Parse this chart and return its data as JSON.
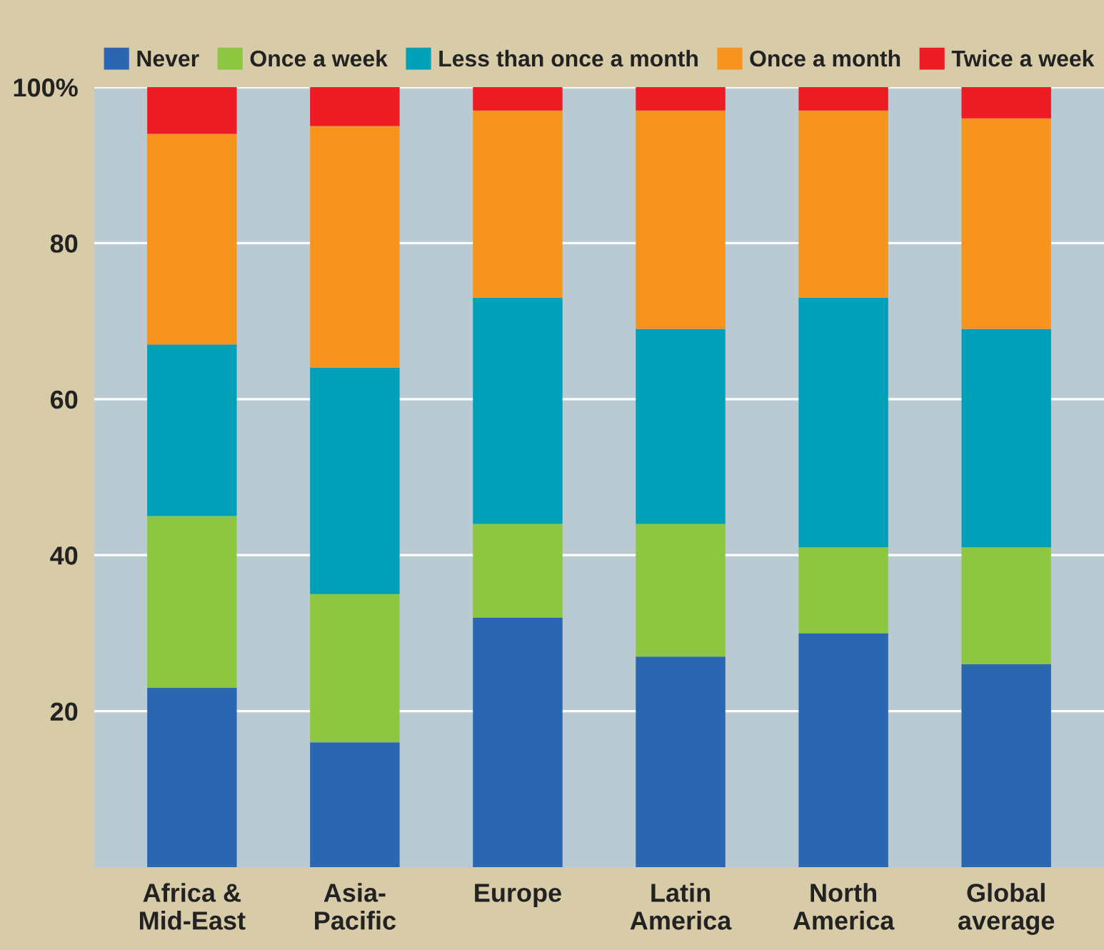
{
  "chart_data": {
    "type": "bar",
    "stacked": true,
    "categories": [
      "Africa &\nMid-East",
      "Asia-\nPacific",
      "Europe",
      "Latin\nAmerica",
      "North\nAmerica",
      "Global\naverage"
    ],
    "series": [
      {
        "name": "Never",
        "color": "#2a66b1",
        "values": [
          23,
          16,
          32,
          27,
          30,
          26
        ]
      },
      {
        "name": "Once a week",
        "color": "#8dc63f",
        "values": [
          22,
          19,
          12,
          17,
          11,
          15
        ]
      },
      {
        "name": "Less than once a month",
        "color": "#00a0b8",
        "values": [
          22,
          29,
          29,
          25,
          32,
          28
        ]
      },
      {
        "name": "Once a month",
        "color": "#f7941e",
        "values": [
          27,
          31,
          24,
          28,
          24,
          27
        ]
      },
      {
        "name": "Twice a week",
        "color": "#ed1c24",
        "values": [
          6,
          5,
          3,
          3,
          3,
          4
        ]
      }
    ],
    "ylim": [
      0,
      100
    ],
    "yticks": [
      20,
      40,
      60,
      80,
      {
        "value": 100,
        "label": "100%"
      }
    ],
    "grid": "y",
    "legend": "top"
  }
}
